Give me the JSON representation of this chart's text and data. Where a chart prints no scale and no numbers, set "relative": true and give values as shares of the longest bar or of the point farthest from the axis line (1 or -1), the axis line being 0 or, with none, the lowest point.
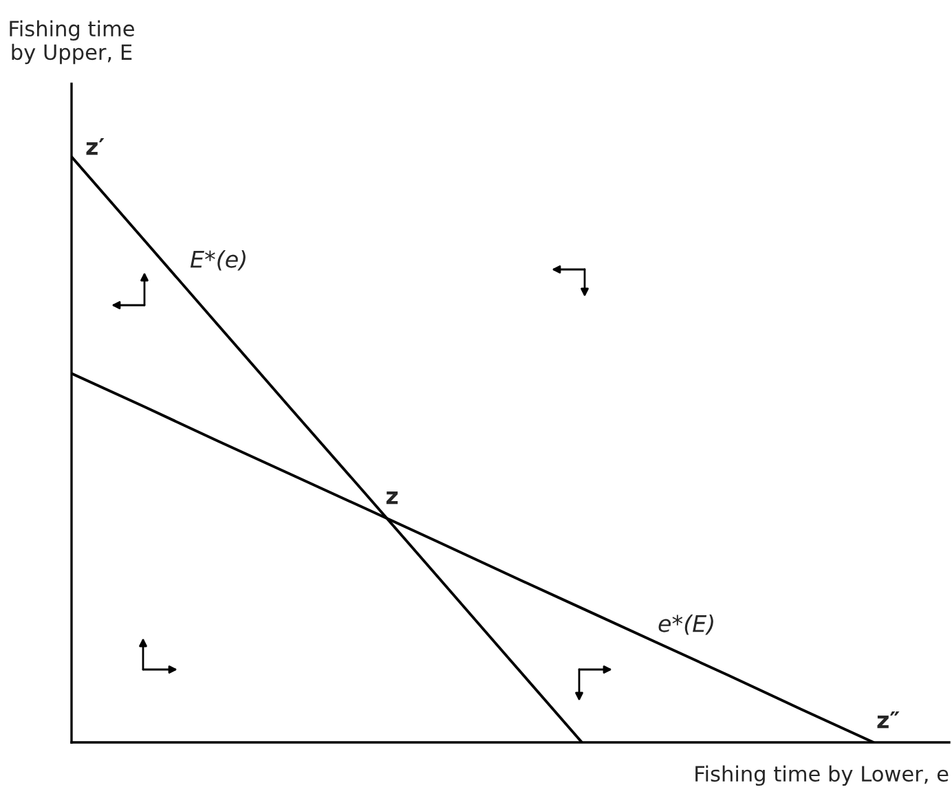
{
  "chart_data": {
    "type": "line",
    "relative": true,
    "xlabel": "Fishing time by Lower, e",
    "ylabel": "Fishing time\nby Upper, E",
    "categories": [
      null,
      null,
      null,
      null,
      null,
      null,
      null,
      null,
      null,
      null,
      null,
      null,
      null
    ],
    "series": [
      {
        "color": "#000000",
        "values": [
          1,
          0.857,
          0.714,
          0.571,
          0.429,
          0.286,
          0.143,
          0,
          null,
          null,
          null,
          null,
          null
        ]
      },
      {
        "color": "#000000",
        "values": [
          0.63,
          0.573,
          0.515,
          0.458,
          0.401,
          0.344,
          0.286,
          0.229,
          0.172,
          0.115,
          0.057,
          0,
          null
        ]
      }
    ],
    "annotations": [
      "z′",
      "E*(e)",
      "z",
      "e*(E)",
      "z″"
    ],
    "grid": false,
    "legend": false,
    "marker": "none",
    "line_style": "solid"
  }
}
